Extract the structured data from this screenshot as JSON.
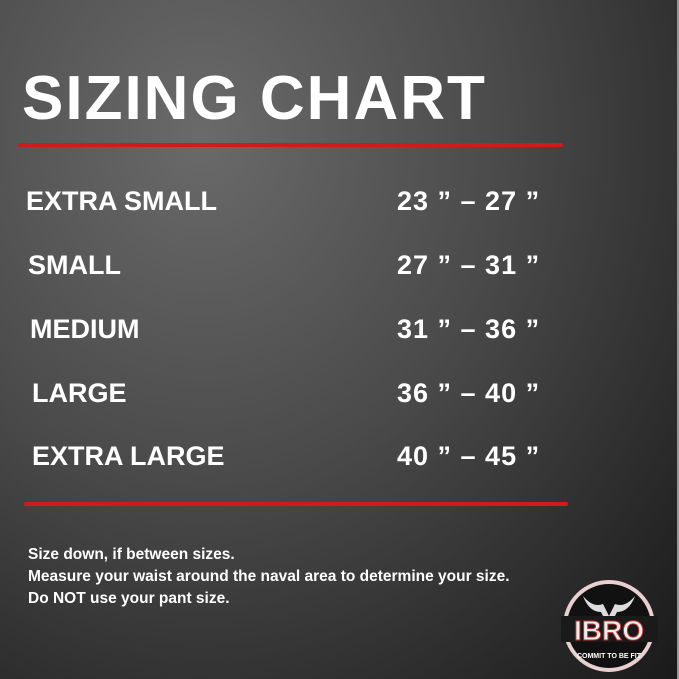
{
  "title": "SIZING CHART",
  "rows": [
    {
      "size": "EXTRA SMALL",
      "range": "23 ” –  27 ”"
    },
    {
      "size": "SMALL",
      "range": "27 ” –  31 ”"
    },
    {
      "size": "MEDIUM",
      "range": "31 ” –  36 ”"
    },
    {
      "size": "LARGE",
      "range": "36 ” –  40 ”"
    },
    {
      "size": "EXTRA LARGE",
      "range": "40 ” –  45 ”"
    }
  ],
  "notes": [
    "Size down, if between sizes.",
    "Measure your waist around the naval area to determine your size.",
    "Do NOT use your pant size."
  ],
  "logo": {
    "brand": "IBRO",
    "tagline": "COMMIT TO BE FIT"
  },
  "colors": {
    "accent": "#d21a1a",
    "text": "#ffffff"
  }
}
